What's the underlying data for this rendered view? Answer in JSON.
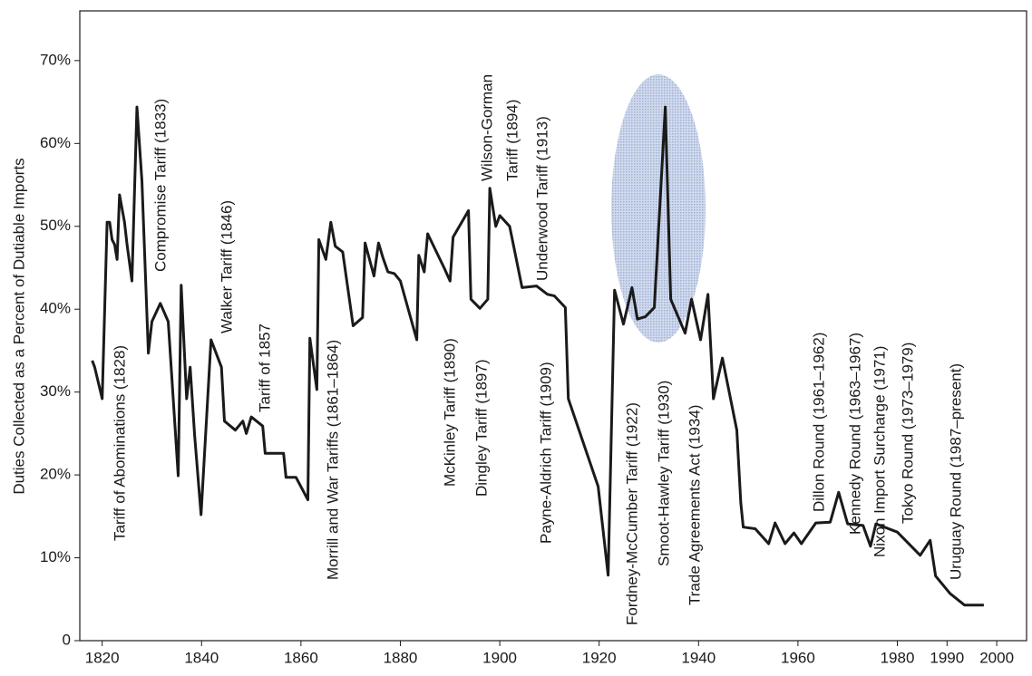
{
  "chart_data": {
    "type": "line",
    "y_label": "Duties Collected as a Percent of Dutiable Imports",
    "x": [
      1818,
      1818.5,
      1820,
      1821,
      1821.5,
      1822,
      1822.5,
      1823,
      1823.5,
      1824.5,
      1825,
      1826,
      1827,
      1828,
      1829.3,
      1830,
      1831.7,
      1833.3,
      1835.3,
      1835.9,
      1837,
      1837.7,
      1838.6,
      1839.9,
      1841.9,
      1844,
      1844.6,
      1846.8,
      1848.3,
      1849,
      1850,
      1852.3,
      1852.8,
      1856.5,
      1857,
      1859,
      1861.4,
      1861.8,
      1863.2,
      1863.6,
      1865,
      1866,
      1866.9,
      1868.4,
      1870.5,
      1872.4,
      1872.9,
      1874.7,
      1875.6,
      1876.5,
      1877.5,
      1878.8,
      1880,
      1883.3,
      1883.7,
      1884.8,
      1885.5,
      1888.8,
      1890,
      1890.6,
      1893.7,
      1894.2,
      1896,
      1897.6,
      1898,
      1899.2,
      1900,
      1902,
      1904.5,
      1907.4,
      1909.6,
      1911,
      1913.2,
      1913.8,
      1919.8,
      1921.8,
      1923.1,
      1924.9,
      1926.6,
      1927.7,
      1929.3,
      1931.1,
      1933.3,
      1934.4,
      1937.3,
      1938.6,
      1940.4,
      1941.9,
      1943,
      1944.8,
      1947.7,
      1948.5,
      1949,
      1951.4,
      1954.1,
      1955.4,
      1957.4,
      1959.2,
      1960.7,
      1963.6,
      1966.5,
      1968.2,
      1970,
      1973.1,
      1974.6,
      1975.7,
      1980,
      1984.6,
      1986.6,
      1987.7,
      1990.6,
      1993.5,
      1997.4
    ],
    "values": [
      33.8,
      33,
      29.2,
      50.5,
      50.5,
      48.4,
      47.8,
      46,
      53.8,
      50.5,
      47.8,
      43.4,
      64.4,
      55.5,
      34.7,
      38.5,
      40.7,
      38.5,
      19.9,
      42.9,
      29.2,
      33,
      24.8,
      15.2,
      36.3,
      33,
      26.5,
      25.4,
      26.5,
      25,
      27,
      25.9,
      22.6,
      22.6,
      19.7,
      19.7,
      17,
      36.5,
      30.3,
      48.4,
      46,
      50.5,
      47.6,
      46.9,
      38,
      39,
      48,
      44,
      48,
      46.2,
      44.5,
      44.3,
      43.4,
      36.3,
      46.5,
      44.5,
      49.1,
      45,
      43.4,
      48.7,
      51.9,
      41.2,
      40.1,
      41.2,
      54.6,
      50,
      51.3,
      50,
      42.6,
      42.8,
      41.8,
      41.6,
      40.2,
      29.2,
      18.6,
      7.9,
      42.3,
      38.2,
      42.6,
      38.8,
      39.1,
      40.2,
      64.4,
      41.2,
      37.1,
      41.2,
      36.3,
      41.8,
      29.2,
      34.1,
      25.4,
      16.6,
      13.7,
      13.5,
      11.7,
      14.2,
      11.7,
      13,
      11.7,
      14.2,
      14.3,
      17.9,
      14.1,
      13.9,
      11.4,
      14.1,
      13.1,
      10.3,
      12.1,
      7.8,
      5.7,
      4.3,
      4.3
    ],
    "color": "#1a1a1a",
    "xlim": [
      1815.5,
      2006
    ],
    "xticks": [
      1820,
      1840,
      1860,
      1880,
      1900,
      1920,
      1940,
      1960,
      1980,
      1990,
      2000
    ],
    "ylim": [
      0,
      76
    ],
    "yticks": [
      0,
      {
        "value": 10,
        "label": "10%"
      },
      {
        "value": 20,
        "label": "20%"
      },
      {
        "value": 30,
        "label": "30%"
      },
      {
        "value": 40,
        "label": "40%"
      },
      {
        "value": 50,
        "label": "50%"
      },
      {
        "value": 60,
        "label": "60%"
      },
      {
        "value": 70,
        "label": "70%"
      }
    ],
    "annotations": [
      "Tariff of Abominations (1828)",
      "Compromise Tariff (1833)",
      "Walker Tariff (1846)",
      "Tariff of 1857",
      "Morrill and War Tariffs (1861–1864)",
      "McKinley  Tariff (1890)",
      "Wilson-Gorman",
      "Tariff (1894)",
      "Dingley Tariff (1897)",
      "Underwood Tariff (1913)",
      "Payne-Aldrich Tariff (1909)",
      "Fordney-McCumber Tariff (1922)",
      "Smoot-Hawley Tariff (1930)",
      "Trade Agreements Act (1934)",
      "Dillon Round (1961–1962)",
      "Kennedy Round (1963–1967)",
      "Nixon Import Surcharge (1971)",
      "Tokyo Round (1973–1979)",
      "Uruguay Round (1987–present)"
    ]
  }
}
